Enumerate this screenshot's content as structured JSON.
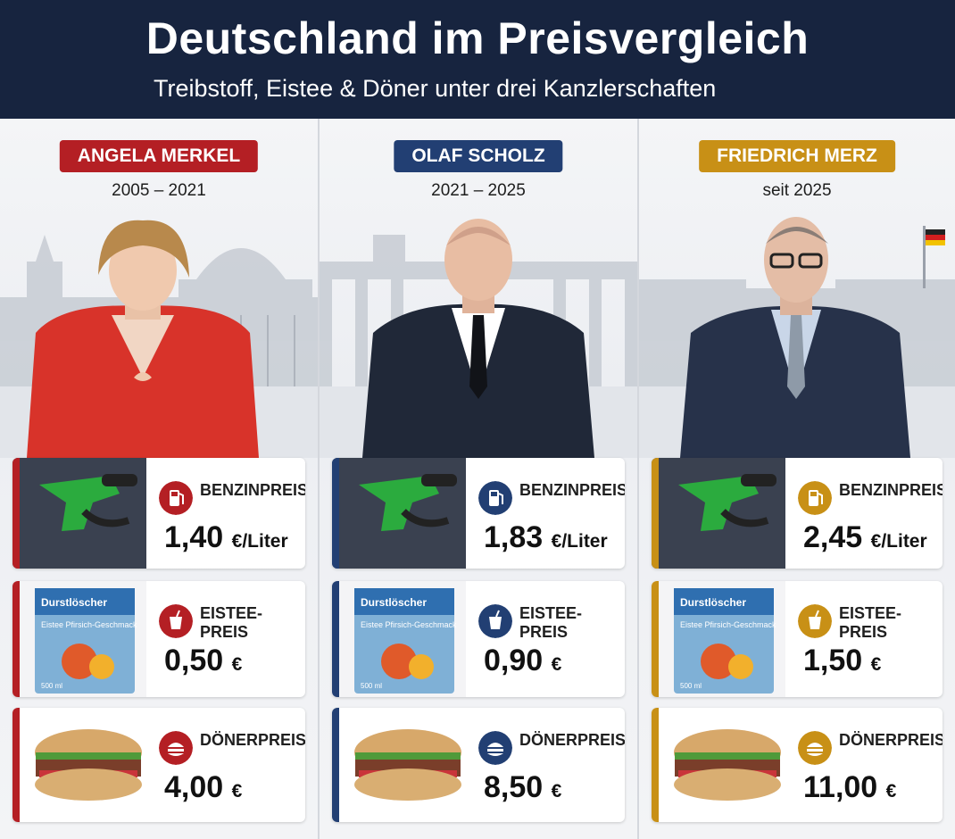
{
  "header": {
    "title": "Deutschland im Preisvergleich",
    "subtitle": "Treibstoff, Eistee & Döner unter drei Kanzlerschaften"
  },
  "colors": {
    "merkel": "#b41f24",
    "scholz": "#223f73",
    "merz": "#c89016",
    "header_bg": "#17243f"
  },
  "columns": [
    {
      "name": "ANGELA MERKEL",
      "years": "2005 – 2021",
      "petrol": {
        "label": "BENZINPREIS",
        "price": "1,40",
        "unit": "€/Liter"
      },
      "icetea": {
        "label": "EISTEE-PREIS",
        "price": "0,50",
        "unit": "€"
      },
      "doner": {
        "label": "DÖNERPREIS",
        "price": "4,00",
        "unit": "€"
      }
    },
    {
      "name": "OLAF SCHOLZ",
      "years": "2021 – 2025",
      "petrol": {
        "label": "BENZINPREIS",
        "price": "1,83",
        "unit": "€/Liter"
      },
      "icetea": {
        "label": "EISTEE-PREIS",
        "price": "0,90",
        "unit": "€"
      },
      "doner": {
        "label": "DÖNERPREIS",
        "price": "8,50",
        "unit": "€"
      }
    },
    {
      "name": "FRIEDRICH MERZ",
      "years": "seit 2025",
      "petrol": {
        "label": "BENZINPREIS",
        "price": "2,45",
        "unit": "€/Liter"
      },
      "icetea": {
        "label": "EISTEE-PREIS",
        "price": "1,50",
        "unit": "€"
      },
      "doner": {
        "label": "DÖNERPREIS",
        "price": "11,00",
        "unit": "€"
      }
    }
  ],
  "product": {
    "brand": "Durstlöscher",
    "flavor": "Eistee Pfirsich-Geschmack",
    "volume": "500 ml"
  },
  "icons": {
    "scenes": [
      "reichstag-illustration",
      "brandenburg-gate-illustration",
      "chancellery-illustration"
    ],
    "petrol": "fuel-pump-icon",
    "icetea": "cup-icon",
    "doner": "doner-icon"
  }
}
